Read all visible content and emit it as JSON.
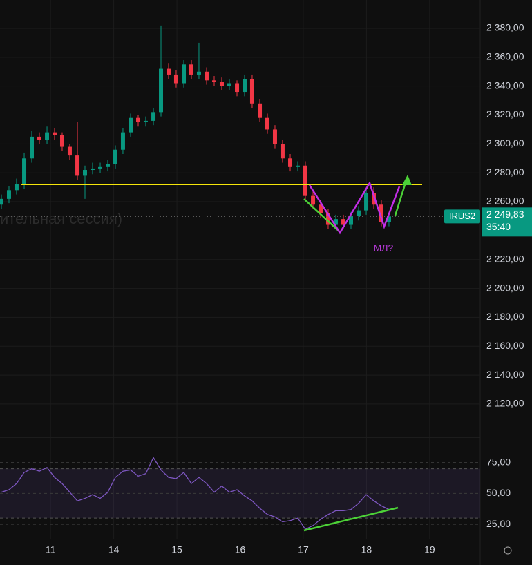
{
  "chart_data": [
    {
      "type": "candlestick",
      "x": [
        -0.778,
        -0.658,
        -0.538,
        -0.417,
        -0.297,
        -0.177,
        -0.056,
        0.064,
        0.184,
        0.304,
        0.425,
        0.545,
        0.665,
        0.786,
        0.906,
        1.026,
        1.146,
        1.267,
        1.387,
        1.507,
        1.628,
        1.748,
        1.868,
        1.988,
        2.109,
        2.229,
        2.349,
        2.47,
        2.59,
        2.71,
        2.83,
        2.951,
        3.071,
        3.191,
        3.312,
        3.432,
        3.552,
        3.672,
        3.793,
        3.913,
        4.033,
        4.154,
        4.274,
        4.394,
        4.514,
        4.635,
        4.755,
        4.875,
        4.996,
        5.116,
        5.236,
        5.356
      ],
      "open": [
        2258,
        2262,
        2268,
        2272,
        2290,
        2305,
        2303,
        2308,
        2306,
        2298,
        2292,
        2278,
        2282,
        2283,
        2284,
        2286,
        2296,
        2308,
        2318,
        2315,
        2316,
        2322,
        2352,
        2348,
        2342,
        2355,
        2348,
        2350,
        2344,
        2343,
        2340,
        2342,
        2336,
        2345,
        2328,
        2318,
        2310,
        2300,
        2290,
        2284,
        2285,
        2264,
        2258,
        2252,
        2244,
        2248,
        2244,
        2250,
        2254,
        2266,
        2258,
        2246
      ],
      "high": [
        2265,
        2271,
        2276,
        2294,
        2309,
        2308,
        2312,
        2311,
        2308,
        2300,
        2315,
        2285,
        2287,
        2287,
        2289,
        2299,
        2311,
        2321,
        2320,
        2319,
        2325,
        2382,
        2356,
        2351,
        2358,
        2358,
        2370,
        2353,
        2347,
        2346,
        2345,
        2344,
        2348,
        2348,
        2331,
        2321,
        2313,
        2303,
        2293,
        2288,
        2288,
        2267,
        2261,
        2255,
        2251,
        2251,
        2253,
        2257,
        2269,
        2270,
        2261,
        2252
      ],
      "low": [
        2255,
        2259,
        2265,
        2269,
        2287,
        2300,
        2300,
        2303,
        2295,
        2289,
        2275,
        2262,
        2279,
        2280,
        2281,
        2283,
        2293,
        2305,
        2312,
        2312,
        2313,
        2319,
        2345,
        2339,
        2339,
        2345,
        2345,
        2341,
        2340,
        2337,
        2337,
        2333,
        2333,
        2325,
        2315,
        2307,
        2297,
        2287,
        2281,
        2281,
        2261,
        2255,
        2249,
        2241,
        2241,
        2241,
        2241,
        2247,
        2251,
        2255,
        2243,
        2243
      ],
      "close": [
        2262,
        2268,
        2272,
        2290,
        2305,
        2303,
        2308,
        2306,
        2298,
        2292,
        2278,
        2282,
        2283,
        2284,
        2286,
        2296,
        2308,
        2318,
        2315,
        2316,
        2322,
        2352,
        2348,
        2342,
        2355,
        2348,
        2350,
        2344,
        2343,
        2340,
        2342,
        2336,
        2345,
        2328,
        2318,
        2310,
        2300,
        2290,
        2284,
        2285,
        2264,
        2258,
        2252,
        2244,
        2248,
        2244,
        2250,
        2254,
        2266,
        2258,
        2246,
        2249.83
      ],
      "up_color": "#089981",
      "down_color": "#f23645",
      "xlim": [
        -0.8,
        6.8
      ],
      "xticks": [
        {
          "value": 0,
          "label": "11"
        },
        {
          "value": 1,
          "label": "14"
        },
        {
          "value": 2,
          "label": "15"
        },
        {
          "value": 3,
          "label": "16"
        },
        {
          "value": 4,
          "label": "17"
        },
        {
          "value": 5,
          "label": "18"
        },
        {
          "value": 6,
          "label": "19"
        }
      ],
      "ylim": [
        2097.5,
        2399.6
      ],
      "yticks": [
        {
          "value": 2120,
          "label": "2 120,00"
        },
        {
          "value": 2140,
          "label": "2 140,00"
        },
        {
          "value": 2160,
          "label": "2 160,00"
        },
        {
          "value": 2180,
          "label": "2 180,00"
        },
        {
          "value": 2200,
          "label": "2 200,00"
        },
        {
          "value": 2220,
          "label": "2 220,00"
        },
        {
          "value": 2260,
          "label": "2 260,00"
        },
        {
          "value": 2280,
          "label": "2 280,00"
        },
        {
          "value": 2300,
          "label": "2 300,00"
        },
        {
          "value": 2320,
          "label": "2 320,00"
        },
        {
          "value": 2340,
          "label": "2 340,00"
        },
        {
          "value": 2360,
          "label": "2 360,00"
        },
        {
          "value": 2380,
          "label": "2 380,00"
        }
      ],
      "level": 2272,
      "level_color": "#f5e50a",
      "annotation": "МЛ?",
      "symbol": "IRUS2",
      "last_price": {
        "value": 2249.83,
        "label": "2 249,83"
      },
      "countdown": "35:40",
      "watermark": "ительная сессия)"
    },
    {
      "type": "line",
      "x": [
        -0.778,
        -0.658,
        -0.538,
        -0.417,
        -0.297,
        -0.177,
        -0.056,
        0.064,
        0.184,
        0.304,
        0.425,
        0.545,
        0.665,
        0.786,
        0.906,
        1.026,
        1.146,
        1.267,
        1.387,
        1.507,
        1.628,
        1.748,
        1.868,
        1.988,
        2.109,
        2.229,
        2.349,
        2.47,
        2.59,
        2.71,
        2.83,
        2.951,
        3.071,
        3.191,
        3.312,
        3.432,
        3.552,
        3.672,
        3.793,
        3.913,
        4.033,
        4.154,
        4.274,
        4.394,
        4.514,
        4.635,
        4.755,
        4.875,
        4.996,
        5.116,
        5.236,
        5.356
      ],
      "values": [
        51,
        53,
        58,
        67,
        70,
        68,
        71,
        63,
        58,
        51,
        44,
        46,
        49,
        46,
        51,
        63,
        68,
        69,
        64,
        66,
        79,
        69,
        63,
        62,
        67,
        58,
        63,
        58,
        51,
        56,
        51,
        53,
        48,
        44,
        38,
        33,
        31,
        27,
        28,
        30,
        21,
        24,
        29,
        33,
        36,
        36,
        37,
        42,
        49,
        44,
        40,
        37
      ],
      "color": "#7e57c2",
      "xlim": [
        -0.8,
        6.8
      ],
      "ylim": [
        13.3,
        95.5
      ],
      "yticks": [
        {
          "value": 25,
          "label": "25,00"
        },
        {
          "value": 50,
          "label": "50,00"
        },
        {
          "value": 75,
          "label": "75,00"
        }
      ],
      "band": [
        30,
        70
      ]
    }
  ]
}
